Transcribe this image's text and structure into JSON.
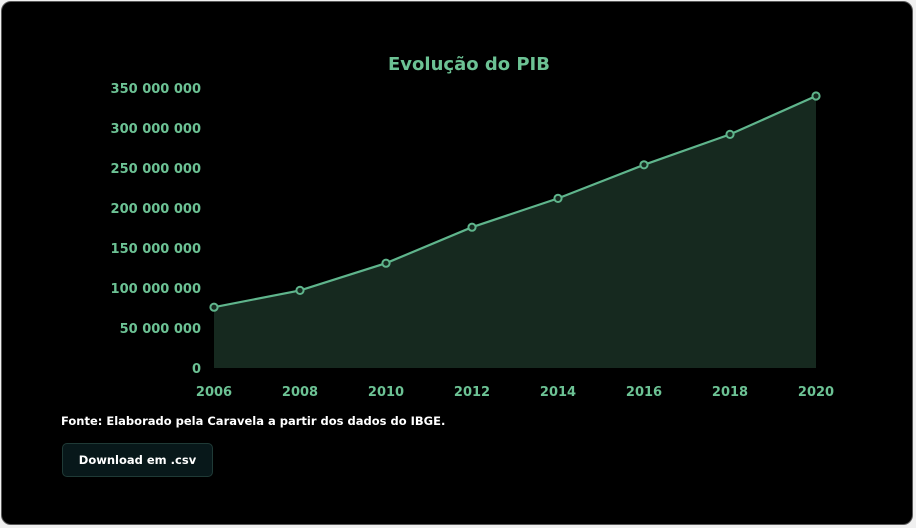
{
  "chart_data": {
    "type": "area",
    "title": "Evolução do PIB",
    "x": [
      "2006",
      "2008",
      "2010",
      "2012",
      "2014",
      "2016",
      "2018",
      "2020"
    ],
    "series": [
      {
        "values": [
          76000000,
          97000000,
          131000000,
          176000000,
          212000000,
          254000000,
          292000000,
          340000000
        ]
      }
    ],
    "ylim": [
      0,
      350000000
    ],
    "yticks": [
      "0",
      "50 000 000",
      "100 000 000",
      "150 000 000",
      "200 000 000",
      "250 000 000",
      "300 000 000",
      "350 000 000"
    ],
    "grid": false,
    "legend": "none",
    "colors": {
      "line": "#5fb58c",
      "fill": "#16291f",
      "text": "#6cc294",
      "background": "#000000"
    }
  },
  "source_note": "Fonte: Elaborado pela Caravela a partir dos dados do IBGE.",
  "download_button": {
    "label": "Download em .csv"
  }
}
